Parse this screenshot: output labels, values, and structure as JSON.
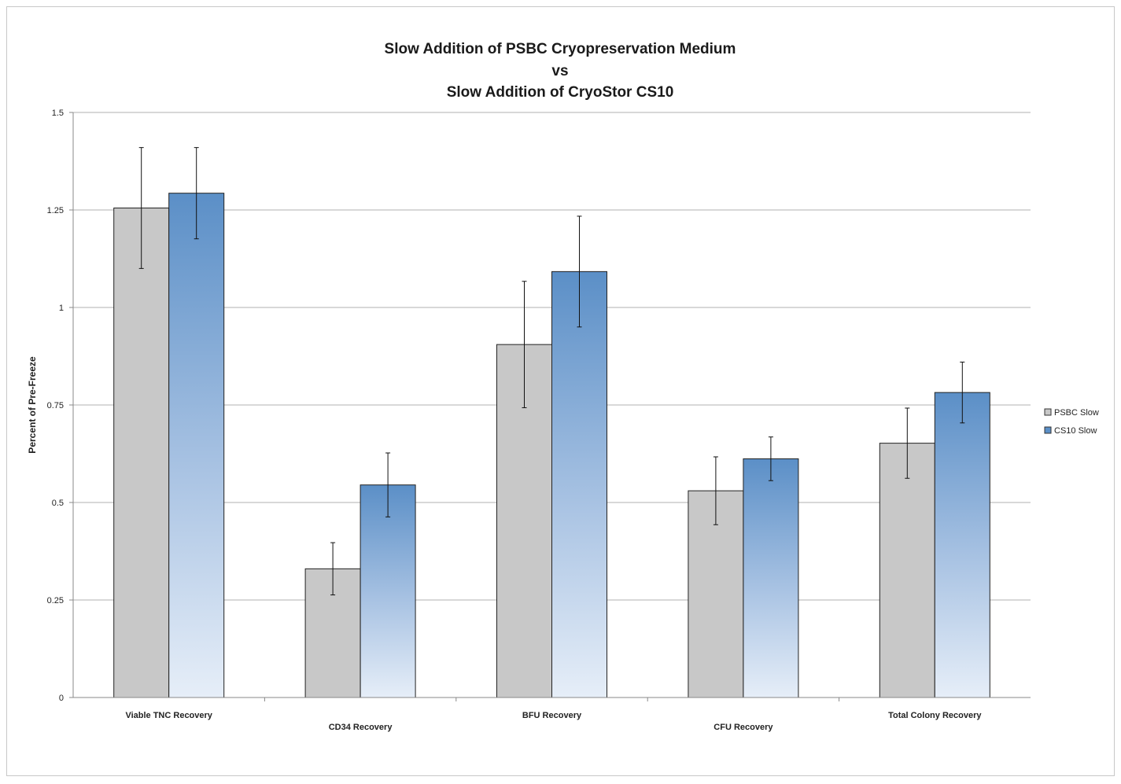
{
  "chart_data": {
    "type": "bar",
    "title": [
      "Slow Addition of PSBC Cryopreservation Medium",
      "vs",
      "Slow Addition of CryoStor CS10"
    ],
    "xlabel": "",
    "ylabel": "Percent of Pre-Freeze",
    "ylim": [
      0,
      1.5
    ],
    "yticks": [
      "0",
      "0.25",
      "0.5",
      "0.75",
      "1",
      "1.25",
      "1.5"
    ],
    "ytick_values": [
      0,
      0.25,
      0.5,
      0.75,
      1,
      1.25,
      1.5
    ],
    "categories": [
      "Viable TNC Recovery",
      "CD34 Recovery",
      "BFU Recovery",
      "CFU Recovery",
      "Total Colony Recovery"
    ],
    "series": [
      {
        "name": "PSBC Slow",
        "color": "#c8c8c8",
        "values": [
          1.255,
          0.33,
          0.905,
          0.53,
          0.652
        ],
        "error": [
          0.155,
          0.067,
          0.162,
          0.087,
          0.09
        ]
      },
      {
        "name": "CS10 Slow",
        "color": "#5b8fc7",
        "values": [
          1.293,
          0.545,
          1.092,
          0.612,
          0.782
        ],
        "error": [
          0.117,
          0.082,
          0.142,
          0.056,
          0.078
        ]
      }
    ],
    "grid": true,
    "legend_position": "right"
  }
}
